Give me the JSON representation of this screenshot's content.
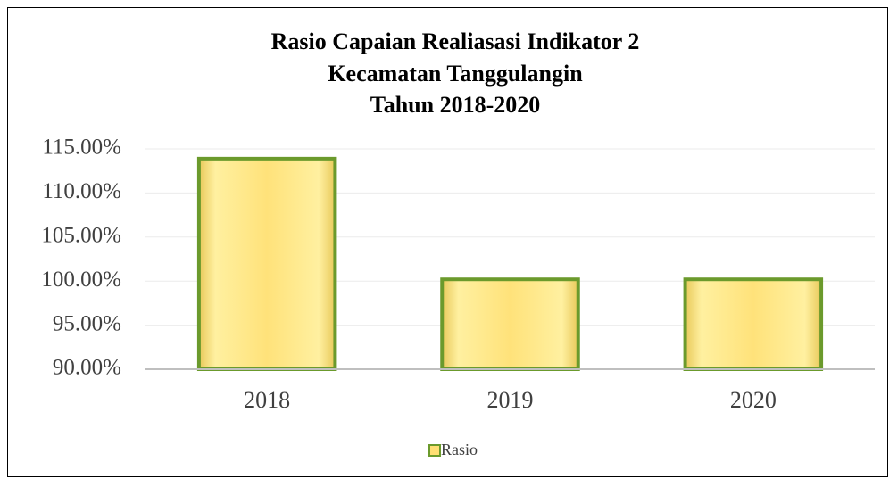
{
  "chart_data": {
    "type": "bar",
    "title": [
      "Rasio Capaian Realiasasi Indikator 2",
      "Kecamatan Tanggulangin",
      "Tahun 2018-2020"
    ],
    "categories": [
      "2018",
      "2019",
      "2020"
    ],
    "series": [
      {
        "name": "Rasio",
        "color": "#ffdf73",
        "border_color": "#6b9a2c",
        "values": [
          113.9,
          100.2,
          100.2
        ]
      }
    ],
    "ylim": [
      90,
      115
    ],
    "yticks": [
      {
        "value": 90,
        "label": "90.00%"
      },
      {
        "value": 95,
        "label": "95.00%"
      },
      {
        "value": 100,
        "label": "100.00%"
      },
      {
        "value": 105,
        "label": "105.00%"
      },
      {
        "value": 110,
        "label": "110.00%"
      },
      {
        "value": 115,
        "label": "115.00%"
      }
    ],
    "grid": true,
    "legend": "bottom"
  }
}
